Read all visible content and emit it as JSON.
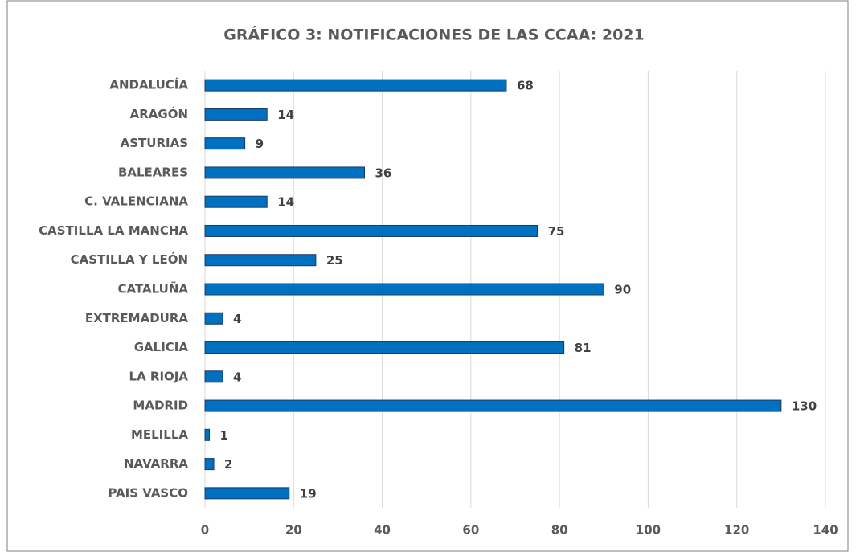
{
  "chart_data": {
    "type": "bar",
    "orientation": "horizontal",
    "title": "GRÁFICO 3: NOTIFICACIONES DE LAS CCAA: 2021",
    "categories": [
      "ANDALUCÍA",
      "ARAGÓN",
      "ASTURIAS",
      "BALEARES",
      "C. VALENCIANA",
      "CASTILLA LA MANCHA",
      "CASTILLA Y LEÓN",
      "CATALUÑA",
      "EXTREMADURA",
      "GALICIA",
      "LA RIOJA",
      "MADRID",
      "MELILLA",
      "NAVARRA",
      "PAIS VASCO"
    ],
    "values": [
      68,
      14,
      9,
      36,
      14,
      75,
      25,
      90,
      4,
      81,
      4,
      130,
      1,
      2,
      19
    ],
    "color": "#0070c0",
    "xlim": [
      0,
      140
    ],
    "xticks": [
      0,
      20,
      40,
      60,
      80,
      100,
      120,
      140
    ],
    "grid": true
  }
}
